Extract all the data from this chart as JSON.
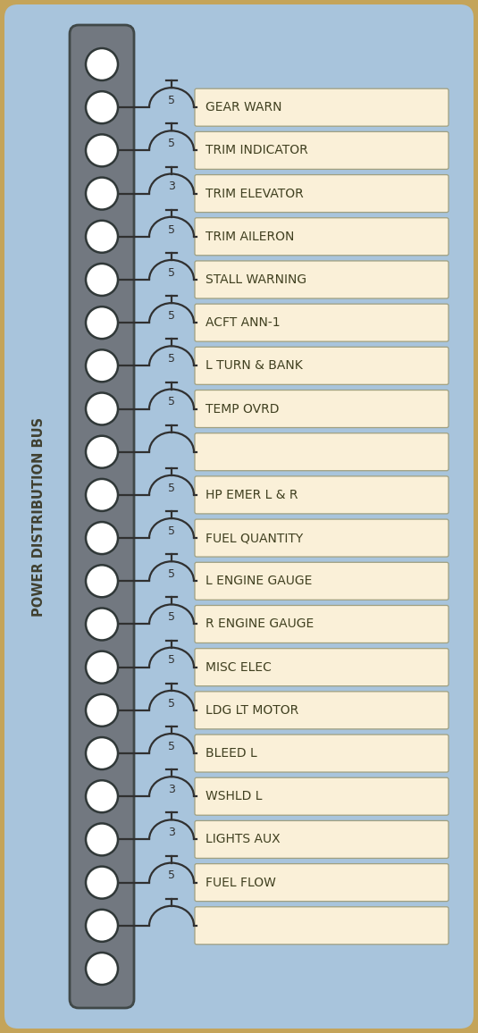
{
  "figure_width": 5.35,
  "figure_height": 11.56,
  "dpi": 100,
  "outer_bg": "#C4A45A",
  "inner_bg": "#A8C4DC",
  "rail_color": "#727880",
  "rail_edge": "#404848",
  "circle_face": "#FFFFFF",
  "circle_edge": "#303838",
  "box_face": "#FAF0D8",
  "box_edge": "#A0A080",
  "text_color": "#404020",
  "fuse_line_color": "#303030",
  "side_label": "POWER DISTRIBUTION BUS",
  "side_label_color": "#404030",
  "side_label_fontsize": 10.5,
  "rows": [
    {
      "label": "GEAR WARN",
      "amp": "5"
    },
    {
      "label": "TRIM INDICATOR",
      "amp": "5"
    },
    {
      "label": "TRIM ELEVATOR",
      "amp": "3"
    },
    {
      "label": "TRIM AILERON",
      "amp": "5"
    },
    {
      "label": "STALL WARNING",
      "amp": "5"
    },
    {
      "label": "ACFT ANN-1",
      "amp": "5"
    },
    {
      "label": "L TURN & BANK",
      "amp": "5"
    },
    {
      "label": "TEMP OVRD",
      "amp": "5"
    },
    {
      "label": "",
      "amp": ""
    },
    {
      "label": "HP EMER L & R",
      "amp": "5"
    },
    {
      "label": "FUEL QUANTITY",
      "amp": "5"
    },
    {
      "label": "L ENGINE GAUGE",
      "amp": "5"
    },
    {
      "label": "R ENGINE GAUGE",
      "amp": "5"
    },
    {
      "label": "MISC ELEC",
      "amp": "5"
    },
    {
      "label": "LDG LT MOTOR",
      "amp": "5"
    },
    {
      "label": "BLEED L",
      "amp": "5"
    },
    {
      "label": "WSHLD L",
      "amp": "3"
    },
    {
      "label": "LIGHTS AUX",
      "amp": "3"
    },
    {
      "label": "FUEL FLOW",
      "amp": "5"
    },
    {
      "label": "",
      "amp": ""
    }
  ]
}
